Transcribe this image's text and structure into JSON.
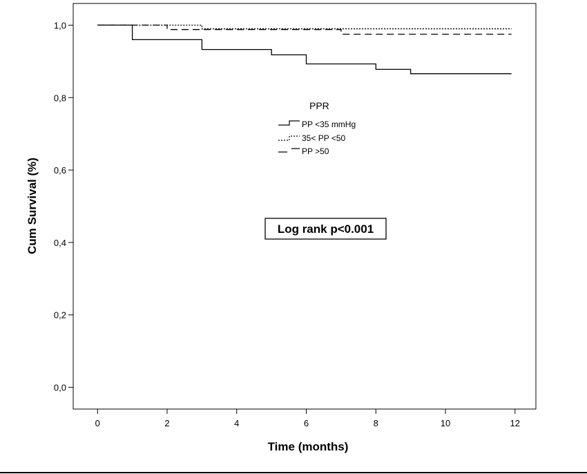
{
  "chart_data": {
    "type": "line",
    "subtype": "kaplan-meier step curves",
    "xlabel": "Time (months)",
    "ylabel": "Cum Survival (%)",
    "xlim": [
      -0.7,
      12.6
    ],
    "ylim": [
      -0.06,
      1.06
    ],
    "x_ticks": [
      0,
      2,
      4,
      6,
      8,
      10,
      12
    ],
    "y_ticks": [
      0.0,
      0.2,
      0.4,
      0.6,
      0.8,
      1.0
    ],
    "y_tick_labels": [
      "0,0",
      "0,2",
      "0,4",
      "0,6",
      "0,8",
      "1,0"
    ],
    "grid": false,
    "legend": {
      "title": "PPR",
      "placement": "upper-center"
    },
    "annotation": "Log rank p<0.001",
    "series": [
      {
        "name": "PP <35 mmHg",
        "line_style": "solid",
        "color": "#000000",
        "x": [
          0,
          1,
          1,
          3,
          3,
          5,
          5,
          6,
          6,
          8,
          8,
          9,
          9,
          11.9
        ],
        "y": [
          1.0,
          1.0,
          0.96,
          0.96,
          0.933,
          0.933,
          0.918,
          0.918,
          0.893,
          0.893,
          0.878,
          0.878,
          0.866,
          0.866
        ]
      },
      {
        "name": "35< PP <50",
        "line_style": "dotted",
        "color": "#000000",
        "x": [
          0,
          3,
          3,
          11.9
        ],
        "y": [
          1.0,
          1.0,
          0.99,
          0.99
        ]
      },
      {
        "name": "PP >50",
        "line_style": "dashed",
        "color": "#000000",
        "x": [
          0,
          2,
          2,
          7,
          7,
          11.9
        ],
        "y": [
          1.0,
          1.0,
          0.988,
          0.988,
          0.975,
          0.975
        ]
      }
    ]
  }
}
